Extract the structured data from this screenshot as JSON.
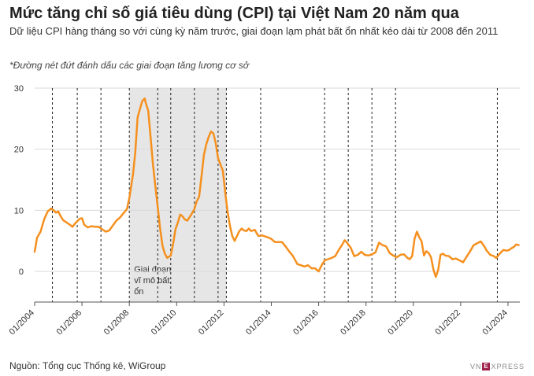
{
  "title": "Mức tăng chỉ số giá tiêu dùng (CPI) tại Việt Nam 20 năm qua",
  "subtitle": "Dữ liệu CPI hàng tháng so với cùng kỳ năm trước, giai đoạn lạm phát bất ổn nhất kéo dài từ 2008 đến 2011",
  "note": "*Đường nét đứt đánh dấu các giai đoạn tăng lương cơ sở",
  "source": "Nguồn: Tổng cục Thống kê, WiGroup",
  "logo_text": "XPRESS",
  "colors": {
    "line": "#f5901e",
    "shade": "#e6e6e6",
    "grid": "#d9d9d9",
    "dashed": "#222222"
  },
  "chart_data": {
    "type": "line",
    "ylim": [
      -5,
      30
    ],
    "yticks": [
      0,
      10,
      20,
      30
    ],
    "xlim": [
      2004.0,
      2024.5
    ],
    "xticks": [
      {
        "x": 2004,
        "label": "01/2004"
      },
      {
        "x": 2006,
        "label": "01/2006"
      },
      {
        "x": 2008,
        "label": "01/2008"
      },
      {
        "x": 2010,
        "label": "01/2010"
      },
      {
        "x": 2012,
        "label": "01/2012"
      },
      {
        "x": 2014,
        "label": "01/2014"
      },
      {
        "x": 2016,
        "label": "01/2016"
      },
      {
        "x": 2018,
        "label": "01/2018"
      },
      {
        "x": 2020,
        "label": "01/2020"
      },
      {
        "x": 2022,
        "label": "01/2022"
      },
      {
        "x": 2024,
        "label": "01/2024"
      }
    ],
    "shaded_period": {
      "start": 2008.0,
      "end": 2012.1,
      "label": "Giai đoạn vĩ mô bất ổn"
    },
    "salary_increase_marks": [
      2004.75,
      2005.8,
      2006.8,
      2008.0,
      2009.2,
      2009.75,
      2010.75,
      2011.75,
      2012.1,
      2013.55,
      2016.25,
      2017.25,
      2018.25,
      2019.25,
      2023.55
    ],
    "x": [
      2004.0,
      2004.1,
      2004.25,
      2004.4,
      2004.55,
      2004.7,
      2004.8,
      2004.9,
      2005.0,
      2005.1,
      2005.2,
      2005.35,
      2005.5,
      2005.6,
      2005.7,
      2005.8,
      2005.9,
      2006.0,
      2006.1,
      2006.25,
      2006.4,
      2006.55,
      2006.7,
      2006.85,
      2007.0,
      2007.15,
      2007.3,
      2007.45,
      2007.6,
      2007.75,
      2007.9,
      2008.0,
      2008.15,
      2008.25,
      2008.35,
      2008.45,
      2008.55,
      2008.65,
      2008.7,
      2008.8,
      2008.9,
      2009.0,
      2009.1,
      2009.2,
      2009.3,
      2009.4,
      2009.5,
      2009.6,
      2009.75,
      2009.85,
      2009.95,
      2010.05,
      2010.15,
      2010.25,
      2010.35,
      2010.45,
      2010.55,
      2010.65,
      2010.75,
      2010.85,
      2010.95,
      2011.05,
      2011.15,
      2011.25,
      2011.35,
      2011.45,
      2011.55,
      2011.65,
      2011.75,
      2011.85,
      2011.95,
      2012.05,
      2012.15,
      2012.25,
      2012.35,
      2012.45,
      2012.55,
      2012.65,
      2012.75,
      2012.85,
      2012.95,
      2013.05,
      2013.15,
      2013.3,
      2013.45,
      2013.6,
      2013.75,
      2013.9,
      2014.0,
      2014.15,
      2014.3,
      2014.45,
      2014.6,
      2014.75,
      2014.9,
      2015.0,
      2015.1,
      2015.25,
      2015.4,
      2015.55,
      2015.7,
      2015.85,
      2016.0,
      2016.1,
      2016.25,
      2016.4,
      2016.55,
      2016.7,
      2016.85,
      2017.0,
      2017.1,
      2017.2,
      2017.35,
      2017.5,
      2017.65,
      2017.8,
      2017.95,
      2018.1,
      2018.25,
      2018.4,
      2018.55,
      2018.7,
      2018.85,
      2019.0,
      2019.15,
      2019.3,
      2019.45,
      2019.6,
      2019.75,
      2019.85,
      2019.95,
      2020.05,
      2020.15,
      2020.25,
      2020.35,
      2020.45,
      2020.55,
      2020.65,
      2020.75,
      2020.85,
      2020.95,
      2021.05,
      2021.15,
      2021.25,
      2021.35,
      2021.5,
      2021.65,
      2021.8,
      2021.95,
      2022.1,
      2022.25,
      2022.4,
      2022.55,
      2022.7,
      2022.85,
      2023.0,
      2023.1,
      2023.25,
      2023.4,
      2023.5,
      2023.65,
      2023.8,
      2023.95,
      2024.05,
      2024.15,
      2024.25,
      2024.35,
      2024.45
    ],
    "y": [
      3.2,
      5.5,
      6.5,
      8.5,
      9.8,
      10.3,
      10.0,
      9.6,
      9.8,
      9.0,
      8.4,
      8.0,
      7.6,
      7.3,
      7.8,
      8.2,
      8.6,
      8.7,
      7.6,
      7.2,
      7.4,
      7.3,
      7.3,
      6.9,
      6.5,
      6.7,
      7.5,
      8.3,
      8.8,
      9.5,
      10.2,
      12.0,
      15.7,
      19.4,
      25.2,
      26.6,
      27.9,
      28.3,
      27.5,
      26.3,
      22.0,
      17.5,
      14.0,
      10.5,
      7.0,
      4.2,
      2.9,
      2.2,
      2.6,
      4.5,
      6.9,
      8.0,
      9.3,
      9.0,
      8.5,
      8.3,
      8.9,
      9.5,
      10.2,
      11.5,
      12.2,
      15.5,
      19.0,
      20.8,
      22.0,
      22.9,
      22.6,
      21.0,
      18.5,
      17.5,
      16.5,
      13.0,
      9.8,
      7.5,
      5.8,
      5.0,
      5.8,
      6.6,
      7.0,
      6.7,
      6.6,
      7.0,
      6.6,
      6.8,
      5.8,
      5.9,
      5.7,
      5.5,
      5.3,
      4.8,
      4.8,
      4.8,
      4.1,
      3.3,
      2.6,
      1.9,
      1.2,
      1.0,
      0.8,
      1.0,
      0.5,
      0.5,
      0.0,
      0.8,
      1.8,
      2.0,
      2.2,
      2.5,
      3.5,
      4.4,
      5.1,
      4.7,
      3.9,
      2.5,
      2.7,
      3.2,
      2.7,
      2.6,
      2.8,
      3.1,
      4.7,
      4.3,
      4.1,
      3.0,
      2.6,
      2.3,
      2.7,
      2.8,
      2.2,
      2.0,
      2.5,
      5.3,
      6.5,
      5.6,
      4.9,
      2.6,
      3.3,
      3.0,
      2.3,
      0.3,
      -0.9,
      0.2,
      2.7,
      2.9,
      2.6,
      2.5,
      2.0,
      2.1,
      1.8,
      1.5,
      2.4,
      3.3,
      4.3,
      4.6,
      4.9,
      4.1,
      3.4,
      2.7,
      2.5,
      2.2,
      2.9,
      3.5,
      3.4,
      3.5,
      3.8,
      4.0,
      4.4,
      4.3
    ]
  }
}
